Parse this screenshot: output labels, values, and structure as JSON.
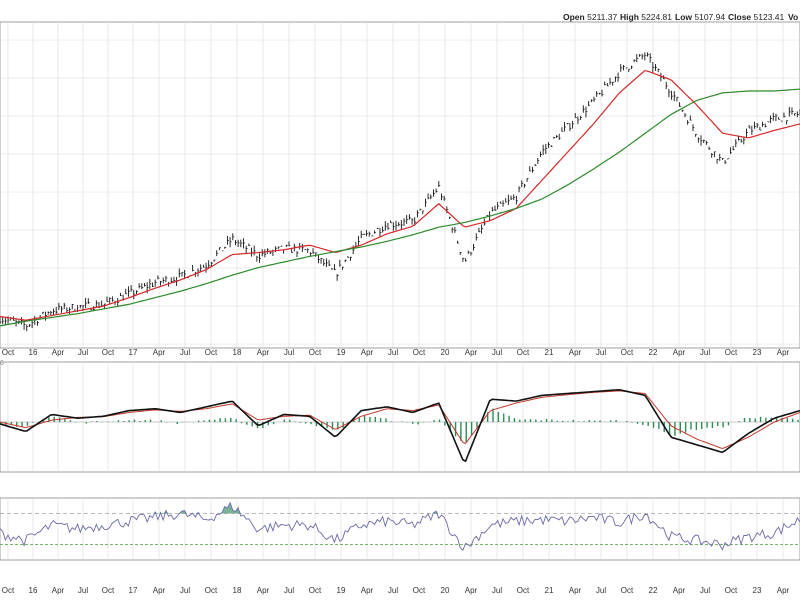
{
  "header": {
    "open_label": "Open",
    "open_value": "5211.37",
    "high_label": "High",
    "high_value": "5224.81",
    "low_label": "Low",
    "low_value": "5107.94",
    "close_label": "Close",
    "close_value": "5123.41",
    "volume_label": "Vo"
  },
  "indicator_label": "6",
  "colors": {
    "price": "#111111",
    "ma_short": "#d62728",
    "ma_long": "#2a8a2a",
    "macd_line": "#111111",
    "signal_line": "#c0392b",
    "histogram": "#2e8b57",
    "rsi_line": "#6a6aa8",
    "rsi_fill": "#5a9e7e",
    "grid": "#d8d8d8",
    "axis_text": "#333333"
  },
  "chart_data": {
    "type": "line",
    "x_ticks": [
      "Oct",
      "16",
      "Apr",
      "Jul",
      "Oct",
      "17",
      "Apr",
      "Jul",
      "Oct",
      "18",
      "Apr",
      "Jul",
      "Oct",
      "19",
      "Apr",
      "Jul",
      "Oct",
      "20",
      "Apr",
      "Jul",
      "Oct",
      "21",
      "Apr",
      "Jul",
      "Oct",
      "22",
      "Apr",
      "Jul",
      "Oct",
      "23",
      "Apr"
    ],
    "price_panel": {
      "series": [
        {
          "role": "price",
          "x": [
            0,
            1,
            2,
            3,
            4,
            5,
            6,
            7,
            8,
            9,
            10,
            11,
            12,
            13,
            14,
            15,
            16,
            17,
            18,
            19,
            20,
            21,
            22,
            23,
            24,
            25,
            26,
            27,
            28,
            29,
            30,
            31
          ],
          "values": [
            1985,
            1900,
            2065,
            2099,
            2130,
            2238,
            2360,
            2423,
            2550,
            2823,
            2650,
            2720,
            2700,
            2450,
            2830,
            2980,
            3010,
            3380,
            2580,
            3100,
            3270,
            3750,
            4020,
            4290,
            4600,
            4790,
            4400,
            3950,
            3640,
            3970,
            4100,
            4160
          ]
        },
        {
          "role": "ma_short",
          "values": [
            2000,
            1960,
            2010,
            2060,
            2110,
            2200,
            2300,
            2390,
            2500,
            2660,
            2680,
            2710,
            2760,
            2680,
            2760,
            2880,
            2960,
            3200,
            2950,
            3020,
            3150,
            3450,
            3750,
            4050,
            4380,
            4620,
            4520,
            4250,
            3950,
            3900,
            3980,
            4050
          ]
        },
        {
          "role": "ma_long",
          "values": [
            1900,
            1950,
            1990,
            2030,
            2080,
            2130,
            2200,
            2270,
            2350,
            2440,
            2520,
            2580,
            2640,
            2690,
            2740,
            2800,
            2870,
            2950,
            3000,
            3070,
            3150,
            3250,
            3400,
            3570,
            3750,
            3950,
            4150,
            4300,
            4380,
            4400,
            4400,
            4420
          ]
        }
      ]
    },
    "macd_panel": {
      "series": [
        {
          "role": "macd_line",
          "values": [
            -5,
            -25,
            20,
            10,
            15,
            30,
            35,
            25,
            40,
            55,
            -10,
            20,
            15,
            -40,
            30,
            40,
            25,
            50,
            -110,
            60,
            55,
            70,
            75,
            80,
            85,
            70,
            -40,
            -60,
            -80,
            -30,
            10,
            30
          ]
        },
        {
          "role": "signal_line",
          "values": [
            0,
            -15,
            5,
            12,
            14,
            25,
            32,
            28,
            35,
            48,
            5,
            15,
            18,
            -20,
            15,
            35,
            30,
            45,
            -60,
            30,
            50,
            65,
            72,
            78,
            82,
            75,
            -10,
            -45,
            -70,
            -40,
            0,
            25
          ]
        }
      ]
    },
    "rsi_panel": {
      "levels": [
        70,
        30
      ],
      "series": [
        {
          "role": "rsi",
          "values": [
            45,
            35,
            55,
            50,
            55,
            60,
            65,
            70,
            62,
            80,
            50,
            55,
            55,
            35,
            55,
            60,
            55,
            70,
            25,
            55,
            60,
            62,
            60,
            65,
            58,
            70,
            40,
            35,
            30,
            40,
            45,
            62
          ]
        }
      ]
    }
  }
}
